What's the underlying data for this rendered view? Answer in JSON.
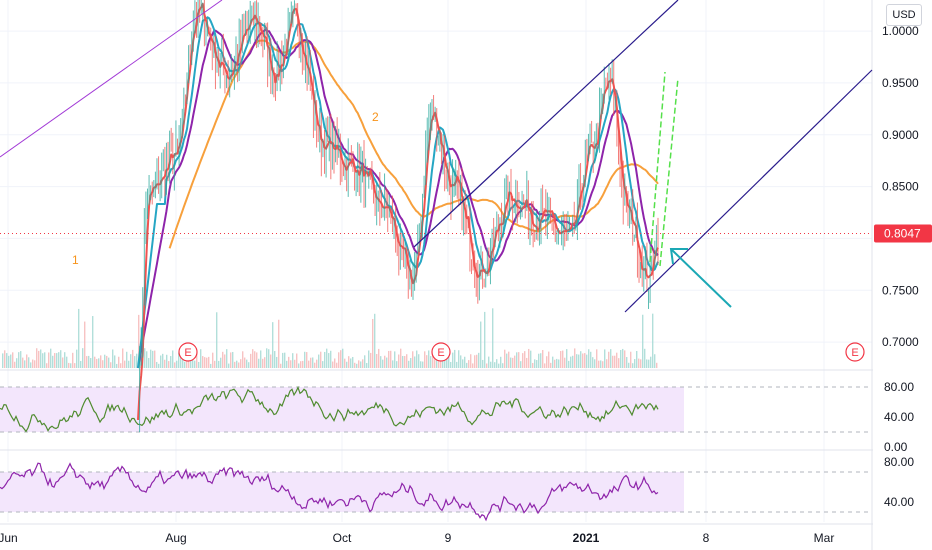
{
  "currency": "USD",
  "last_price": "0.8047",
  "colors": {
    "background": "#ffffff",
    "grid": "#f0f3fa",
    "price_line": "#f23645",
    "ma_fast": "#ef5350",
    "ma_mid": "#26a6c4",
    "ma_slow": "#8e24aa",
    "ma_long": "#f7a03c",
    "trend_purple": "#a23ad6",
    "channel_navy": "#2a1c8c",
    "arrow_green": "#55e04a",
    "arrow_teal": "#1ba8b5",
    "rsi_line": "#4f8b2f",
    "osc_line": "#8e24aa",
    "band_fill": "#f3e6fc",
    "earnings_badge": "#f23645",
    "annotation_orange": "#f7931a"
  },
  "annotations": {
    "wave_1": "1",
    "wave_2": "2"
  },
  "earnings_markers": [
    "E",
    "E",
    "E"
  ],
  "chart_data": {
    "type": "line",
    "price_axis": {
      "ylim": [
        0.675,
        1.03
      ],
      "ticks": [
        "1.0000",
        "0.9500",
        "0.9000",
        "0.8500",
        "0.8000",
        "0.7500",
        "0.7000"
      ],
      "tick_values": [
        1.0,
        0.95,
        0.9,
        0.85,
        0.8,
        0.75,
        0.7
      ]
    },
    "time_axis": {
      "labels": [
        "Jun",
        "Aug",
        "Oct",
        "9",
        "2021",
        "8",
        "Mar"
      ],
      "bold_labels": [
        "2021"
      ]
    },
    "price_series": {
      "name": "",
      "x": [
        0,
        5,
        10,
        15,
        20,
        25,
        30,
        35,
        40,
        45,
        50,
        55,
        60,
        65,
        70,
        75,
        80,
        85,
        90,
        95,
        100
      ],
      "keypoints": [
        [
          0,
          0.64
        ],
        [
          28,
          0.64
        ],
        [
          30,
          0.84
        ],
        [
          36,
          0.88
        ],
        [
          40,
          1.02
        ],
        [
          46,
          0.96
        ],
        [
          52,
          1.01
        ],
        [
          56,
          0.96
        ],
        [
          60,
          1.01
        ],
        [
          66,
          0.89
        ],
        [
          72,
          0.87
        ],
        [
          78,
          0.83
        ],
        [
          84,
          0.76
        ],
        [
          88,
          0.92
        ],
        [
          92,
          0.85
        ],
        [
          98,
          0.77
        ],
        [
          104,
          0.84
        ],
        [
          110,
          0.82
        ],
        [
          116,
          0.8
        ],
        [
          120,
          0.88
        ],
        [
          124,
          0.95
        ],
        [
          128,
          0.82
        ],
        [
          132,
          0.76
        ],
        [
          134,
          0.81
        ]
      ]
    },
    "rsi": {
      "ylim": [
        0,
        100
      ],
      "ticks": [
        "80.00",
        "40.00",
        "0.00"
      ],
      "tick_values": [
        80,
        40,
        0
      ],
      "band": [
        20,
        80
      ]
    },
    "oscillator": {
      "ylim": [
        20,
        90
      ],
      "ticks": [
        "80.00",
        "40.00"
      ],
      "tick_values": [
        80,
        40
      ],
      "band": [
        30,
        70
      ]
    }
  }
}
